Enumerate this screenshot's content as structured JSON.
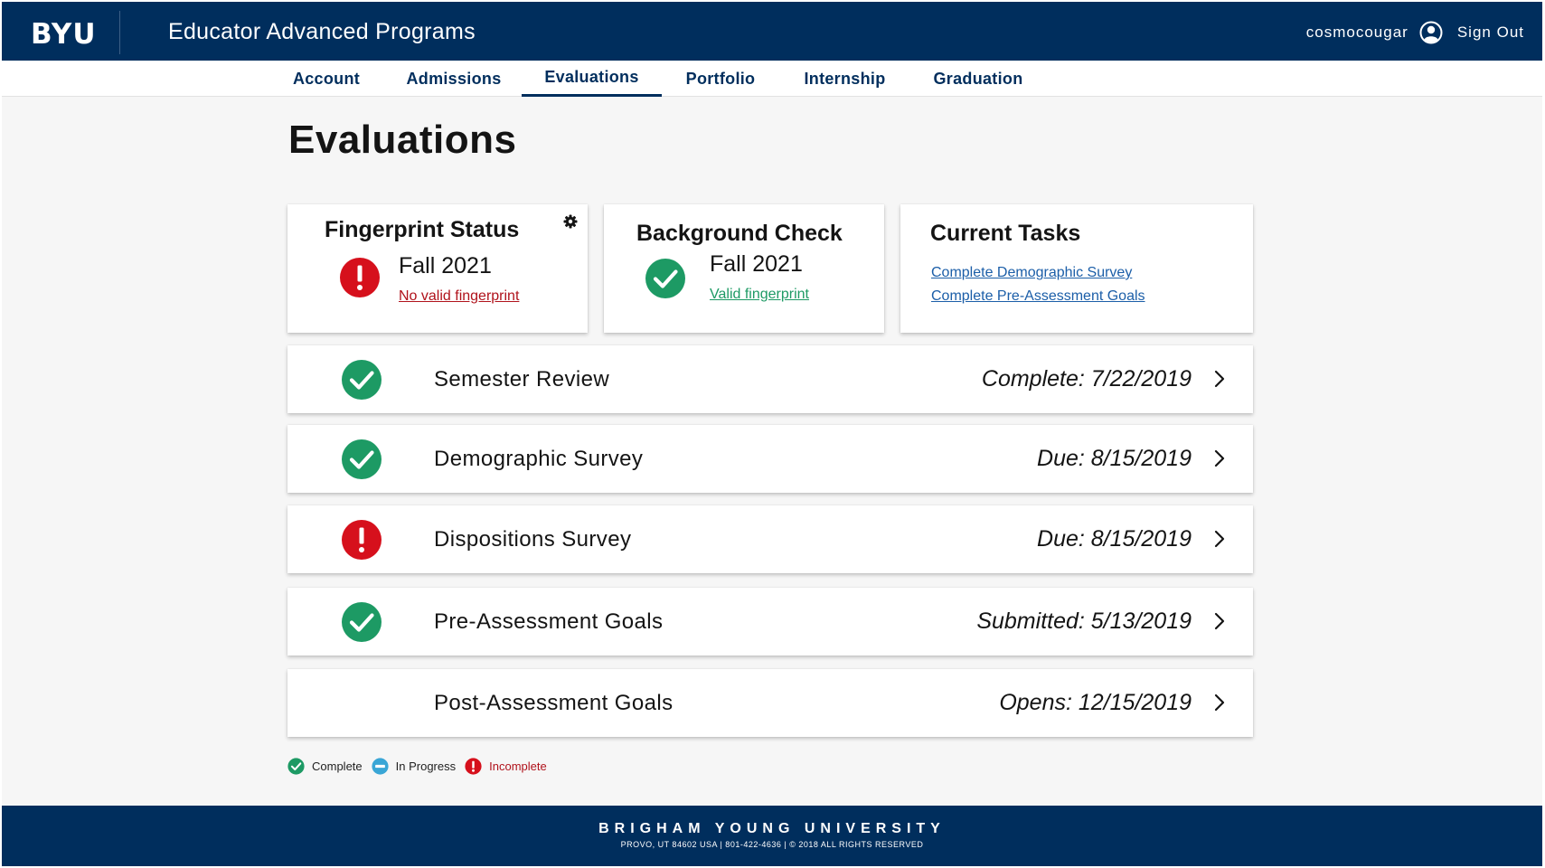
{
  "header": {
    "logo": "BYU",
    "app_title": "Educator Advanced Programs",
    "username": "cosmocougar",
    "sign_out": "Sign Out"
  },
  "nav": {
    "tabs": [
      {
        "label": "Account"
      },
      {
        "label": "Admissions"
      },
      {
        "label": "Evaluations",
        "active": true
      },
      {
        "label": "Portfolio"
      },
      {
        "label": "Internship"
      },
      {
        "label": "Graduation"
      }
    ]
  },
  "page": {
    "title": "Evaluations"
  },
  "cards": {
    "fingerprint": {
      "title": "Fingerprint Status",
      "term": "Fall 2021",
      "status_link": "No valid fingerprint",
      "status": "incomplete"
    },
    "background": {
      "title": "Background Check",
      "term": "Fall 2021",
      "status_link": "Valid fingerprint",
      "status": "complete"
    },
    "tasks": {
      "title": "Current Tasks",
      "items": [
        "Complete Demographic Survey",
        "Complete Pre-Assessment Goals"
      ]
    }
  },
  "evaluations": [
    {
      "title": "Semester Review",
      "status_text": "Complete: 7/22/2019",
      "state": "complete"
    },
    {
      "title": "Demographic Survey",
      "status_text": "Due: 8/15/2019",
      "state": "complete"
    },
    {
      "title": "Dispositions Survey",
      "status_text": "Due: 8/15/2019",
      "state": "incomplete"
    },
    {
      "title": "Pre-Assessment Goals",
      "status_text": "Submitted: 5/13/2019",
      "state": "complete"
    },
    {
      "title": "Post-Assessment Goals",
      "status_text": "Opens: 12/15/2019",
      "state": "none"
    }
  ],
  "legend": {
    "complete": "Complete",
    "in_progress": "In Progress",
    "incomplete": "Incomplete"
  },
  "footer": {
    "name": "BRIGHAM YOUNG UNIVERSITY",
    "info": "PROVO, UT 84602 USA  |  801-422-4636  |  © 2018 ALL RIGHTS RESERVED"
  },
  "colors": {
    "brand_navy": "#002e5d",
    "complete_green": "#1d9a64",
    "incomplete_red": "#d6101c",
    "in_progress_blue": "#3aa6d6",
    "link_blue": "#1b5ea8"
  }
}
